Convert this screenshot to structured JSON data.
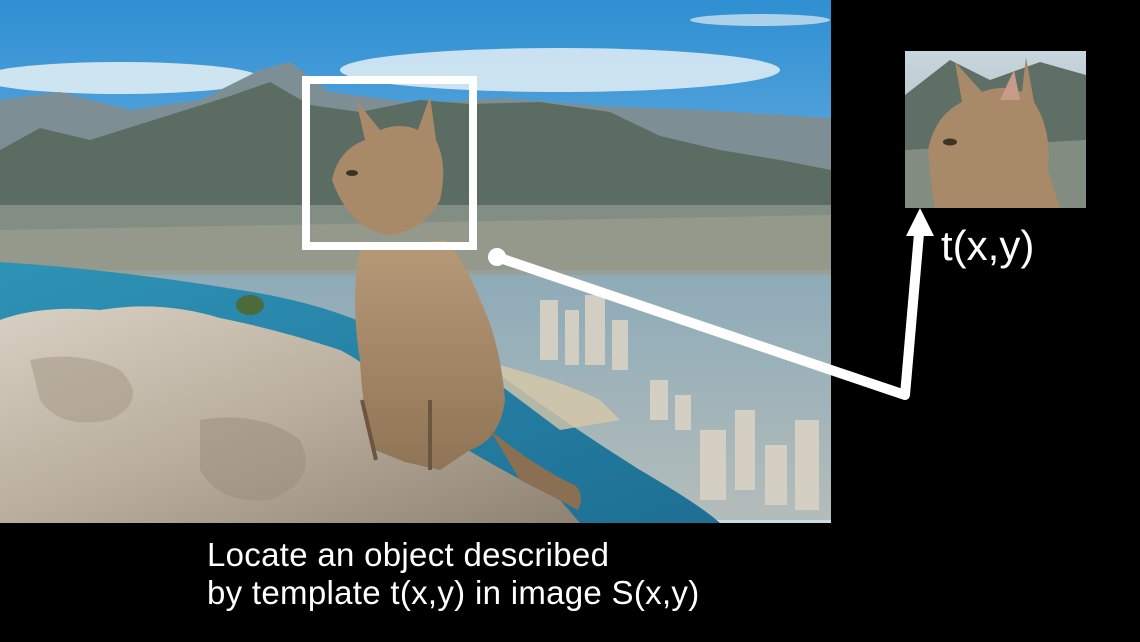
{
  "figure": {
    "template_label": "t(x,y)",
    "caption_line1": "Locate an object described",
    "caption_line2": "by template t(x,y) in image S(x,y)"
  },
  "colors": {
    "background": "#000000",
    "overlay": "#ffffff",
    "sky": "#3f9ad6",
    "sea": "#2a8ab0",
    "mountain": "#5d6f63",
    "rock": "#cfc6b8",
    "cat": "#a88a68"
  },
  "icons": {
    "scene": "photo-of-cat-on-cliff",
    "template_crop": "cropped-cat-head-photo",
    "arrow": "arrow-up-icon"
  }
}
